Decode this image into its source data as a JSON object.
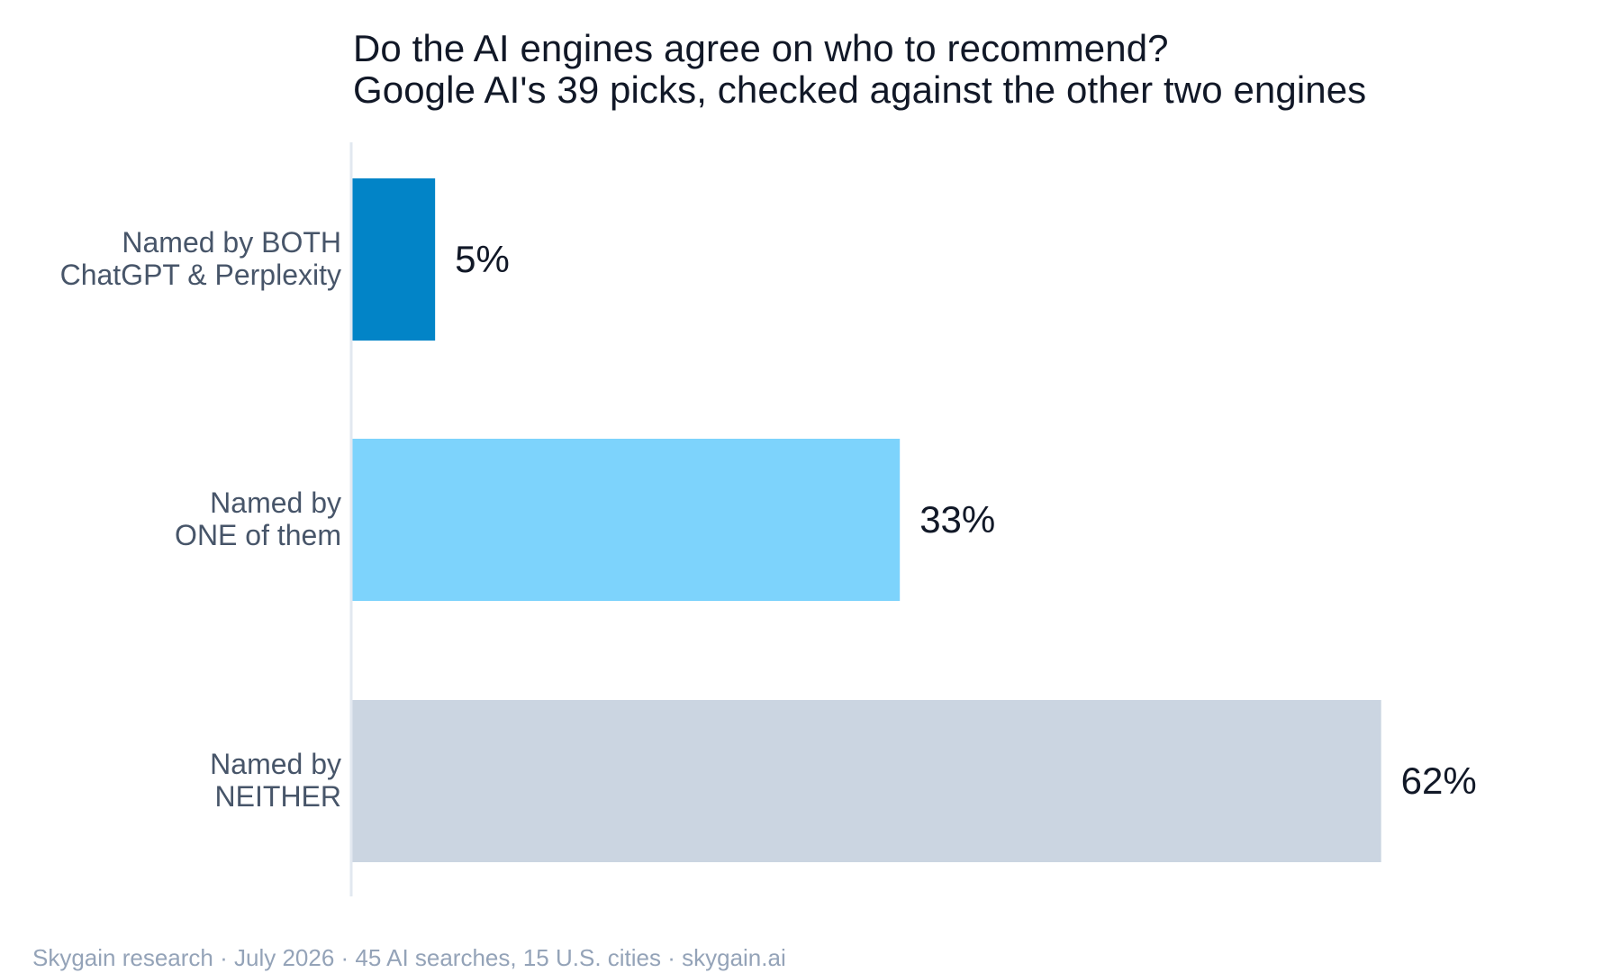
{
  "chart_data": {
    "type": "bar",
    "orientation": "horizontal",
    "title": "Do the AI engines agree on who to recommend?",
    "subtitle": "Google AI's 39 picks, checked against the other two engines",
    "categories": [
      [
        "Named by BOTH",
        "ChatGPT & Perplexity"
      ],
      [
        "Named by",
        "ONE of them"
      ],
      [
        "Named by",
        "NEITHER"
      ]
    ],
    "values": [
      5,
      33,
      62
    ],
    "value_labels": [
      "5%",
      "33%",
      "62%"
    ],
    "colors": [
      "#0284c7",
      "#7dd3fc",
      "#cbd5e1"
    ],
    "xlim": [
      0,
      66
    ],
    "xlabel": "",
    "ylabel": "",
    "grid": false,
    "legend": "none"
  },
  "footer": "Skygain research · July 2026 · 45 AI searches, 15 U.S. cities · skygain.ai",
  "colors": {
    "title": "#111827",
    "category_label": "#475569",
    "value_label": "#111827",
    "axis": "#e2e8f0",
    "footer": "#94a3b8"
  }
}
